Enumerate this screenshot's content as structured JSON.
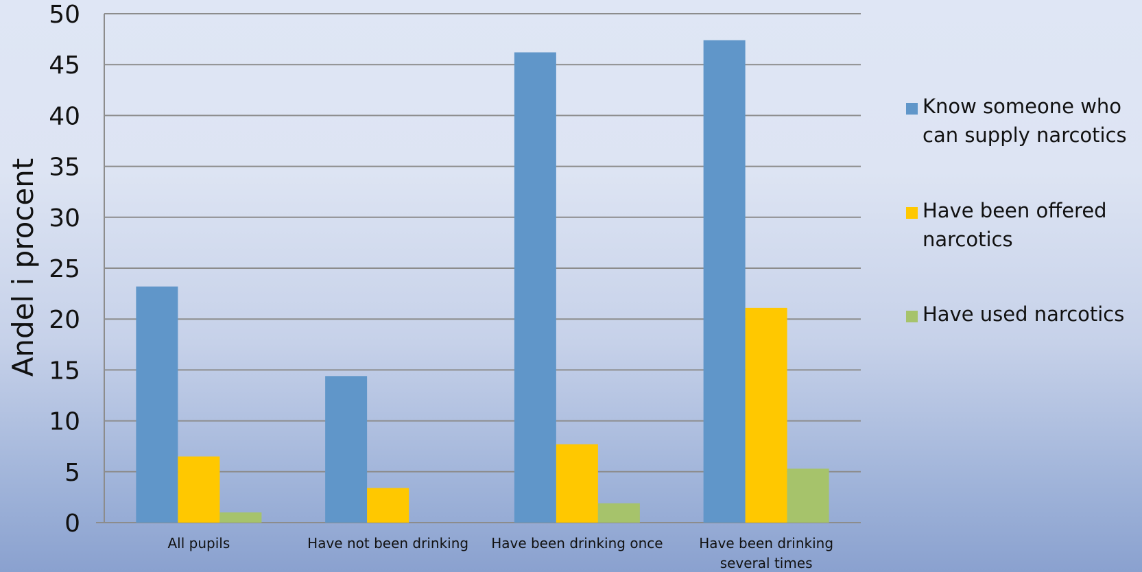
{
  "chart_data": {
    "type": "bar",
    "title": "",
    "xlabel": "",
    "ylabel": "Andel i procent",
    "ylim": [
      0,
      50
    ],
    "yticks": [
      0,
      5,
      10,
      15,
      20,
      25,
      30,
      35,
      40,
      45,
      50
    ],
    "grid": "horizontal",
    "legend_position": "right",
    "categories": [
      [
        "All pupils"
      ],
      [
        "Have not been drinking"
      ],
      [
        "Have been drinking once"
      ],
      [
        "Have been drinking",
        "several times"
      ]
    ],
    "series": [
      {
        "name": [
          "Know someone who",
          "can supply narcotics"
        ],
        "color": "#6096c9",
        "values": [
          23.2,
          14.4,
          46.2,
          47.4
        ]
      },
      {
        "name": [
          "Have been offered",
          "narcotics"
        ],
        "color": "#ffc800",
        "values": [
          6.5,
          3.4,
          7.7,
          21.1
        ]
      },
      {
        "name": [
          "Have used narcotics"
        ],
        "color": "#a6c36b",
        "values": [
          1.0,
          0,
          1.9,
          5.3
        ]
      }
    ]
  }
}
